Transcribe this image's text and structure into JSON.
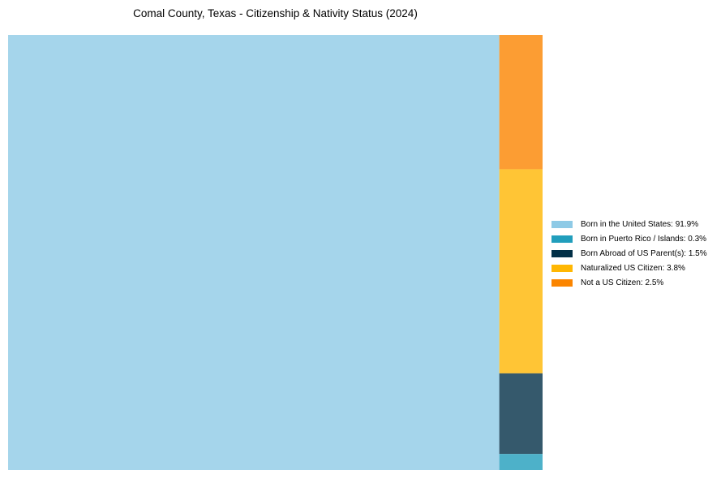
{
  "chart_data": {
    "type": "treemap",
    "title": "Comal County, Texas - Citizenship & Nativity Status (2024)",
    "series": [
      {
        "name": "Born in the United States",
        "value": 91.9,
        "label": "Born in the United States: 91.9%",
        "color": "#8ecae6"
      },
      {
        "name": "Born in Puerto Rico / Islands",
        "value": 0.3,
        "label": "Born in Puerto Rico / Islands: 0.3%",
        "color": "#219ebc"
      },
      {
        "name": "Born Abroad of US Parent(s)",
        "value": 1.5,
        "label": "Born Abroad of US Parent(s): 1.5%",
        "color": "#023047"
      },
      {
        "name": "Naturalized US Citizen",
        "value": 3.8,
        "label": "Naturalized US Citizen: 3.8%",
        "color": "#ffb703"
      },
      {
        "name": "Not a US Citizen",
        "value": 2.5,
        "label": "Not a US Citizen: 2.5%",
        "color": "#fb8500"
      }
    ],
    "legend_position": "right",
    "tile_opacity": 0.8
  }
}
